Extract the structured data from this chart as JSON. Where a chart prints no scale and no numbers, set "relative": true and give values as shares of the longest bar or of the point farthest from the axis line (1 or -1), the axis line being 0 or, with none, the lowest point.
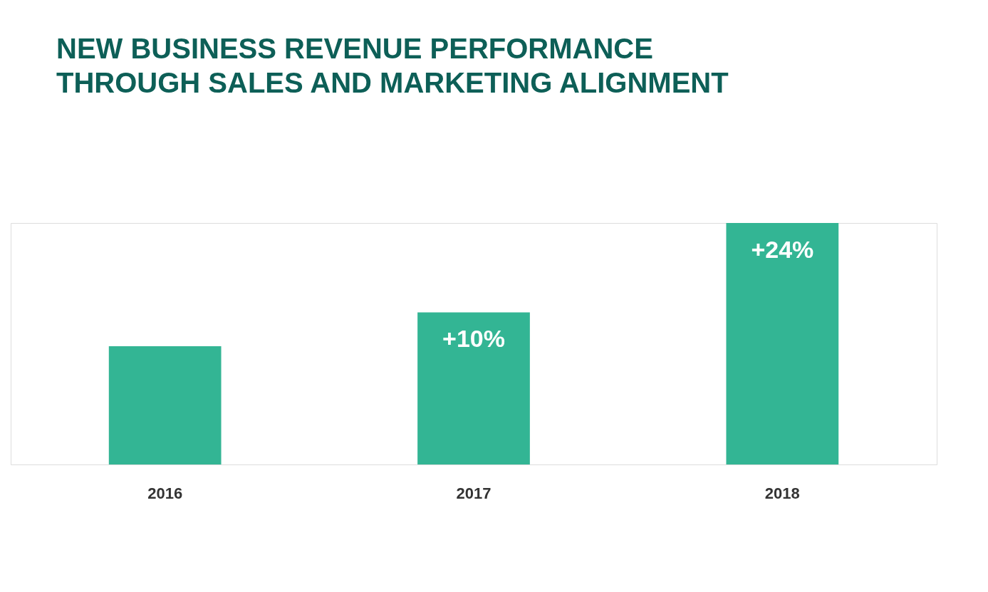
{
  "chart_data": {
    "type": "bar",
    "title": "NEW BUSINESS REVENUE PERFORMANCE\nTHROUGH SALES AND MARKETING ALIGNMENT",
    "categories": [
      "2016",
      "2017",
      "2018"
    ],
    "values": [
      0.49,
      0.63,
      1
    ],
    "annotations": [
      {
        "text": "+10%",
        "x": "2017",
        "y": 0.63
      },
      {
        "text": "+24%",
        "x": "2018",
        "y": 1
      }
    ],
    "color": "#33b594",
    "relative": true,
    "grid": false
  }
}
